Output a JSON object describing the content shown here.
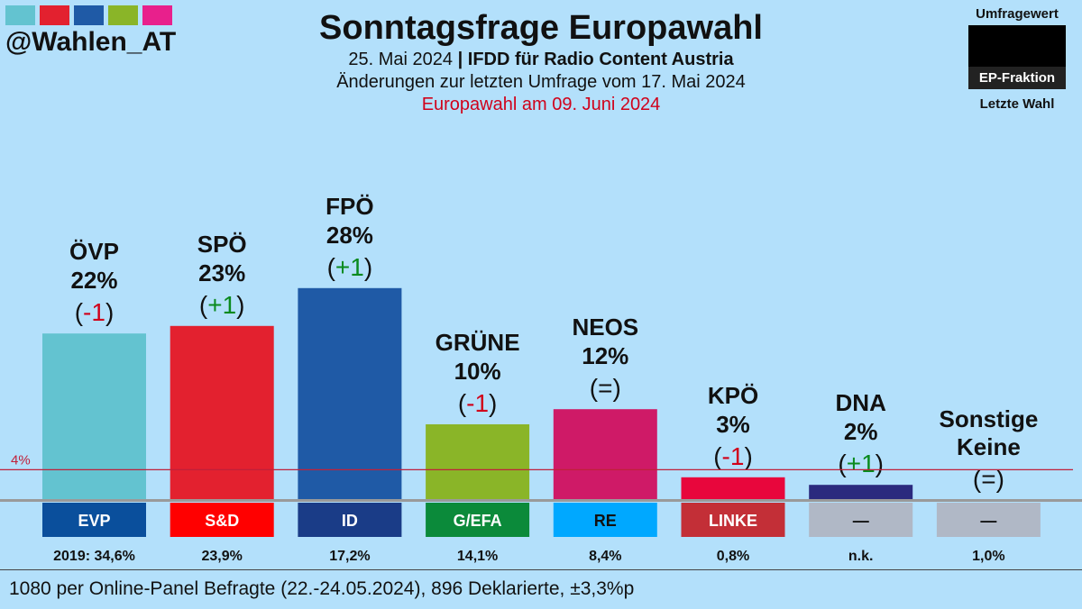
{
  "brand": {
    "handle": "@Wahlen_AT",
    "swatch_colors": [
      "#63c3d0",
      "#e3212f",
      "#1f5aa6",
      "#8ab528",
      "#e8208c"
    ]
  },
  "header": {
    "title": "Sonntagsfrage Europawahl",
    "date": "25. Mai 2024",
    "separator": "|",
    "institute": "IFDD für Radio Content Austria",
    "changes_note": "Änderungen zur letzten Umfrage vom 17. Mai 2024",
    "election_note": "Europawahl am 09. Juni 2024"
  },
  "legend": {
    "top_label": "Umfragewert",
    "middle_label": "EP-Fraktion",
    "bottom_label": "Letzte Wahl"
  },
  "chart_data": {
    "type": "bar",
    "title": "Sonntagsfrage Europawahl",
    "unit": "%",
    "ylim": [
      0,
      30
    ],
    "threshold": {
      "value": 4,
      "label": "4%"
    },
    "categories": [
      "ÖVP",
      "SPÖ",
      "FPÖ",
      "GRÜNE",
      "NEOS",
      "KPÖ",
      "DNA",
      "Sonstige Keine"
    ],
    "values": [
      22,
      23,
      28,
      10,
      12,
      3,
      2,
      0
    ],
    "bars": [
      {
        "party": "ÖVP",
        "value": 22,
        "pct_label": "22%",
        "change": "-1",
        "change_dir": "down",
        "color": "#63c3d0",
        "ep_group": "EVP",
        "ep_color": "#0a4f9c",
        "ep_text_color": "#ffffff",
        "previous": "2019: 34,6%"
      },
      {
        "party": "SPÖ",
        "value": 23,
        "pct_label": "23%",
        "change": "+1",
        "change_dir": "up",
        "color": "#e3212f",
        "ep_group": "S&D",
        "ep_color": "#ff0000",
        "ep_text_color": "#ffffff",
        "previous": "23,9%"
      },
      {
        "party": "FPÖ",
        "value": 28,
        "pct_label": "28%",
        "change": "+1",
        "change_dir": "up",
        "color": "#1f5aa6",
        "ep_group": "ID",
        "ep_color": "#1a3c87",
        "ep_text_color": "#ffffff",
        "previous": "17,2%"
      },
      {
        "party": "GRÜNE",
        "value": 10,
        "pct_label": "10%",
        "change": "-1",
        "change_dir": "down",
        "color": "#8ab528",
        "ep_group": "G/EFA",
        "ep_color": "#0b8a3a",
        "ep_text_color": "#ffffff",
        "previous": "14,1%"
      },
      {
        "party": "NEOS",
        "value": 12,
        "pct_label": "12%",
        "change": "=",
        "change_dir": "same",
        "color": "#cf1a67",
        "ep_group": "RE",
        "ep_color": "#00a8ff",
        "ep_text_color": "#111111",
        "previous": "8,4%"
      },
      {
        "party": "KPÖ",
        "value": 3,
        "pct_label": "3%",
        "change": "-1",
        "change_dir": "down",
        "color": "#e8063c",
        "ep_group": "LINKE",
        "ep_color": "#c32f37",
        "ep_text_color": "#ffffff",
        "previous": "0,8%"
      },
      {
        "party": "DNA",
        "value": 2,
        "pct_label": "2%",
        "change": "+1",
        "change_dir": "up",
        "color": "#2b2a7e",
        "ep_group": "—",
        "ep_color": "#b0b8c6",
        "ep_text_color": "#111111",
        "previous": "n.k."
      },
      {
        "party": "Sonstige\nKeine",
        "value": 0,
        "pct_label": "",
        "change": "=",
        "change_dir": "same",
        "color": "#b0b8c6",
        "ep_group": "—",
        "ep_color": "#b0b8c6",
        "ep_text_color": "#111111",
        "previous": "1,0%"
      }
    ]
  },
  "footer": {
    "note": "1080 per Online-Panel Befragte (22.-24.05.2024), 896 Deklarierte, ±3,3%p"
  }
}
